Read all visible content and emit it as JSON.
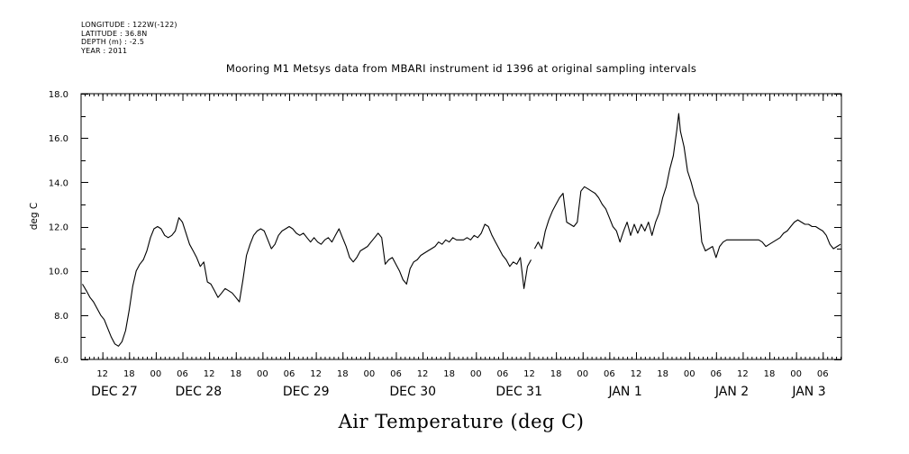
{
  "header": {
    "meta": [
      "LONGITUDE : 122W(-122)",
      "LATITUDE : 36.8N",
      "DEPTH (m) : -2.5",
      "YEAR : 2011"
    ]
  },
  "chart_data": {
    "type": "line",
    "title": "Mooring M1 Metsys data from MBARI instrument id 1396 at original sampling intervals",
    "xlabel": "Air Temperature (deg C)",
    "ylabel": "deg C",
    "x_unit": "hour of 2011-12-27 (local)",
    "xlim": [
      7.2,
      178.2
    ],
    "ylim": [
      6.0,
      18.0
    ],
    "y_ticks": [
      6.0,
      8.0,
      10.0,
      12.0,
      14.0,
      16.0,
      18.0
    ],
    "y_tick_labels": [
      "6.0",
      "8.0",
      "10.0",
      "12.0",
      "14.0",
      "16.0",
      "18.0"
    ],
    "x_hour_ticks": [
      {
        "x": 12,
        "label": "12"
      },
      {
        "x": 18,
        "label": "18"
      },
      {
        "x": 24,
        "label": "00"
      },
      {
        "x": 30,
        "label": "06"
      },
      {
        "x": 36,
        "label": "12"
      },
      {
        "x": 42,
        "label": "18"
      },
      {
        "x": 48,
        "label": "00"
      },
      {
        "x": 54,
        "label": "06"
      },
      {
        "x": 60,
        "label": "12"
      },
      {
        "x": 66,
        "label": "18"
      },
      {
        "x": 72,
        "label": "00"
      },
      {
        "x": 78,
        "label": "06"
      },
      {
        "x": 84,
        "label": "12"
      },
      {
        "x": 90,
        "label": "18"
      },
      {
        "x": 96,
        "label": "00"
      },
      {
        "x": 102,
        "label": "06"
      },
      {
        "x": 108,
        "label": "12"
      },
      {
        "x": 114,
        "label": "18"
      },
      {
        "x": 120,
        "label": "00"
      },
      {
        "x": 126,
        "label": "06"
      },
      {
        "x": 132,
        "label": "12"
      },
      {
        "x": 138,
        "label": "18"
      },
      {
        "x": 144,
        "label": "00"
      },
      {
        "x": 150,
        "label": "06"
      },
      {
        "x": 156,
        "label": "12"
      },
      {
        "x": 162,
        "label": "18"
      },
      {
        "x": 168,
        "label": "00"
      },
      {
        "x": 174,
        "label": "06"
      }
    ],
    "x_day_labels": [
      {
        "x": 14.7,
        "label": "DEC 27"
      },
      {
        "x": 33.6,
        "label": "DEC 28"
      },
      {
        "x": 57.8,
        "label": "DEC 29"
      },
      {
        "x": 81.8,
        "label": "DEC 30"
      },
      {
        "x": 105.7,
        "label": "DEC 31"
      },
      {
        "x": 129.6,
        "label": "JAN  1"
      },
      {
        "x": 153.6,
        "label": "JAN  2"
      },
      {
        "x": 170.9,
        "label": "JAN  3"
      }
    ],
    "series": [
      {
        "segments": [
          [
            [
              7.5,
              9.4
            ],
            [
              8.4,
              9.1
            ],
            [
              9.2,
              8.8
            ],
            [
              10.0,
              8.6
            ],
            [
              10.8,
              8.3
            ],
            [
              11.6,
              8.0
            ],
            [
              12.4,
              7.8
            ],
            [
              13.2,
              7.4
            ],
            [
              14.0,
              7.0
            ],
            [
              14.8,
              6.7
            ],
            [
              15.6,
              6.6
            ],
            [
              16.4,
              6.8
            ],
            [
              17.2,
              7.3
            ],
            [
              18.0,
              8.2
            ],
            [
              18.8,
              9.3
            ],
            [
              19.6,
              10.0
            ],
            [
              20.4,
              10.3
            ],
            [
              21.2,
              10.5
            ],
            [
              22.0,
              10.9
            ],
            [
              22.8,
              11.5
            ],
            [
              23.6,
              11.9
            ],
            [
              24.4,
              12.0
            ],
            [
              25.2,
              11.9
            ],
            [
              26.0,
              11.6
            ],
            [
              26.8,
              11.5
            ],
            [
              27.6,
              11.6
            ],
            [
              28.4,
              11.8
            ],
            [
              29.2,
              12.4
            ],
            [
              30.0,
              12.2
            ],
            [
              30.8,
              11.7
            ],
            [
              31.6,
              11.2
            ],
            [
              32.4,
              10.9
            ],
            [
              33.2,
              10.6
            ],
            [
              34.0,
              10.2
            ],
            [
              34.8,
              10.4
            ],
            [
              35.6,
              9.5
            ],
            [
              36.4,
              9.4
            ],
            [
              37.2,
              9.1
            ],
            [
              38.0,
              8.8
            ],
            [
              38.8,
              9.0
            ],
            [
              39.6,
              9.2
            ],
            [
              40.4,
              9.1
            ],
            [
              41.2,
              9.0
            ],
            [
              42.0,
              8.8
            ],
            [
              42.8,
              8.6
            ],
            [
              43.6,
              9.6
            ],
            [
              44.4,
              10.7
            ],
            [
              45.2,
              11.2
            ],
            [
              46.0,
              11.6
            ],
            [
              46.8,
              11.8
            ],
            [
              47.6,
              11.9
            ],
            [
              48.4,
              11.8
            ],
            [
              49.2,
              11.4
            ],
            [
              50.0,
              11.0
            ],
            [
              50.8,
              11.2
            ],
            [
              51.6,
              11.6
            ],
            [
              52.4,
              11.8
            ],
            [
              53.2,
              11.9
            ],
            [
              54.0,
              12.0
            ],
            [
              54.8,
              11.9
            ],
            [
              55.6,
              11.7
            ],
            [
              56.4,
              11.6
            ],
            [
              57.2,
              11.7
            ],
            [
              58.0,
              11.5
            ],
            [
              58.8,
              11.3
            ],
            [
              59.6,
              11.5
            ],
            [
              60.4,
              11.3
            ],
            [
              61.2,
              11.2
            ],
            [
              62.0,
              11.4
            ],
            [
              62.8,
              11.5
            ],
            [
              63.6,
              11.3
            ],
            [
              64.4,
              11.6
            ],
            [
              65.2,
              11.9
            ],
            [
              66.0,
              11.5
            ],
            [
              66.8,
              11.1
            ],
            [
              67.6,
              10.6
            ],
            [
              68.4,
              10.4
            ],
            [
              69.2,
              10.6
            ],
            [
              70.0,
              10.9
            ],
            [
              70.8,
              11.0
            ],
            [
              71.6,
              11.1
            ],
            [
              72.4,
              11.3
            ],
            [
              73.2,
              11.5
            ],
            [
              74.0,
              11.7
            ],
            [
              74.8,
              11.5
            ],
            [
              75.6,
              10.3
            ],
            [
              76.4,
              10.5
            ],
            [
              77.2,
              10.6
            ],
            [
              78.0,
              10.3
            ],
            [
              78.8,
              10.0
            ],
            [
              79.6,
              9.6
            ],
            [
              80.4,
              9.4
            ],
            [
              81.2,
              10.1
            ],
            [
              82.0,
              10.4
            ],
            [
              82.8,
              10.5
            ],
            [
              83.6,
              10.7
            ],
            [
              84.4,
              10.8
            ],
            [
              85.2,
              10.9
            ],
            [
              86.0,
              11.0
            ],
            [
              86.8,
              11.1
            ],
            [
              87.6,
              11.3
            ],
            [
              88.4,
              11.2
            ],
            [
              89.2,
              11.4
            ],
            [
              90.0,
              11.3
            ],
            [
              90.8,
              11.5
            ],
            [
              91.6,
              11.4
            ],
            [
              92.4,
              11.4
            ],
            [
              93.2,
              11.4
            ],
            [
              94.0,
              11.5
            ],
            [
              94.8,
              11.4
            ],
            [
              95.6,
              11.6
            ],
            [
              96.4,
              11.5
            ],
            [
              97.2,
              11.7
            ],
            [
              98.0,
              12.1
            ],
            [
              98.8,
              12.0
            ],
            [
              99.6,
              11.6
            ],
            [
              100.4,
              11.3
            ],
            [
              101.2,
              11.0
            ],
            [
              102.0,
              10.7
            ],
            [
              102.8,
              10.5
            ],
            [
              103.6,
              10.2
            ],
            [
              104.4,
              10.4
            ],
            [
              105.2,
              10.3
            ],
            [
              106.0,
              10.6
            ],
            [
              106.8,
              9.2
            ],
            [
              107.6,
              10.2
            ],
            [
              108.4,
              10.5
            ]
          ],
          [
            [
              109.2,
              11.0
            ],
            [
              110.0,
              11.3
            ],
            [
              110.8,
              11.0
            ],
            [
              111.6,
              11.8
            ],
            [
              112.4,
              12.3
            ],
            [
              113.2,
              12.7
            ],
            [
              114.0,
              13.0
            ],
            [
              114.8,
              13.3
            ],
            [
              115.6,
              13.5
            ],
            [
              116.4,
              12.2
            ],
            [
              117.2,
              12.1
            ],
            [
              118.0,
              12.0
            ],
            [
              118.8,
              12.2
            ],
            [
              119.6,
              13.6
            ],
            [
              120.4,
              13.8
            ],
            [
              121.2,
              13.7
            ],
            [
              122.0,
              13.6
            ],
            [
              122.8,
              13.5
            ],
            [
              123.6,
              13.3
            ],
            [
              124.4,
              13.0
            ],
            [
              125.2,
              12.8
            ],
            [
              126.0,
              12.4
            ],
            [
              126.8,
              12.0
            ],
            [
              127.6,
              11.8
            ],
            [
              128.4,
              11.3
            ],
            [
              129.2,
              11.8
            ],
            [
              130.0,
              12.2
            ],
            [
              130.8,
              11.6
            ],
            [
              131.6,
              12.1
            ],
            [
              132.4,
              11.7
            ],
            [
              133.2,
              12.1
            ],
            [
              134.0,
              11.8
            ],
            [
              134.8,
              12.2
            ],
            [
              135.6,
              11.6
            ],
            [
              136.4,
              12.2
            ],
            [
              137.2,
              12.6
            ],
            [
              138.0,
              13.3
            ],
            [
              138.8,
              13.8
            ],
            [
              139.6,
              14.6
            ],
            [
              140.4,
              15.2
            ],
            [
              141.2,
              16.4
            ],
            [
              141.6,
              17.1
            ],
            [
              142.0,
              16.3
            ],
            [
              142.8,
              15.6
            ],
            [
              143.6,
              14.5
            ],
            [
              144.4,
              14.0
            ],
            [
              145.2,
              13.4
            ],
            [
              146.0,
              13.0
            ],
            [
              146.8,
              11.3
            ],
            [
              147.6,
              10.9
            ],
            [
              148.4,
              11.0
            ],
            [
              149.2,
              11.1
            ],
            [
              150.0,
              10.6
            ],
            [
              150.8,
              11.1
            ],
            [
              151.6,
              11.3
            ],
            [
              152.4,
              11.4
            ],
            [
              153.2,
              11.4
            ],
            [
              154.0,
              11.4
            ],
            [
              154.8,
              11.4
            ],
            [
              155.6,
              11.4
            ],
            [
              156.4,
              11.4
            ],
            [
              157.2,
              11.4
            ],
            [
              158.0,
              11.4
            ],
            [
              158.8,
              11.4
            ],
            [
              159.6,
              11.4
            ],
            [
              160.4,
              11.3
            ],
            [
              161.2,
              11.1
            ],
            [
              162.0,
              11.2
            ],
            [
              162.8,
              11.3
            ],
            [
              163.6,
              11.4
            ],
            [
              164.4,
              11.5
            ],
            [
              165.2,
              11.7
            ],
            [
              166.0,
              11.8
            ],
            [
              166.8,
              12.0
            ],
            [
              167.6,
              12.2
            ],
            [
              168.4,
              12.3
            ],
            [
              169.2,
              12.2
            ],
            [
              170.0,
              12.1
            ],
            [
              170.8,
              12.1
            ],
            [
              171.6,
              12.0
            ],
            [
              172.4,
              12.0
            ],
            [
              173.2,
              11.9
            ],
            [
              174.0,
              11.8
            ],
            [
              174.8,
              11.6
            ],
            [
              175.6,
              11.2
            ],
            [
              176.4,
              11.0
            ],
            [
              177.2,
              11.1
            ],
            [
              178.0,
              11.2
            ]
          ]
        ]
      }
    ]
  }
}
